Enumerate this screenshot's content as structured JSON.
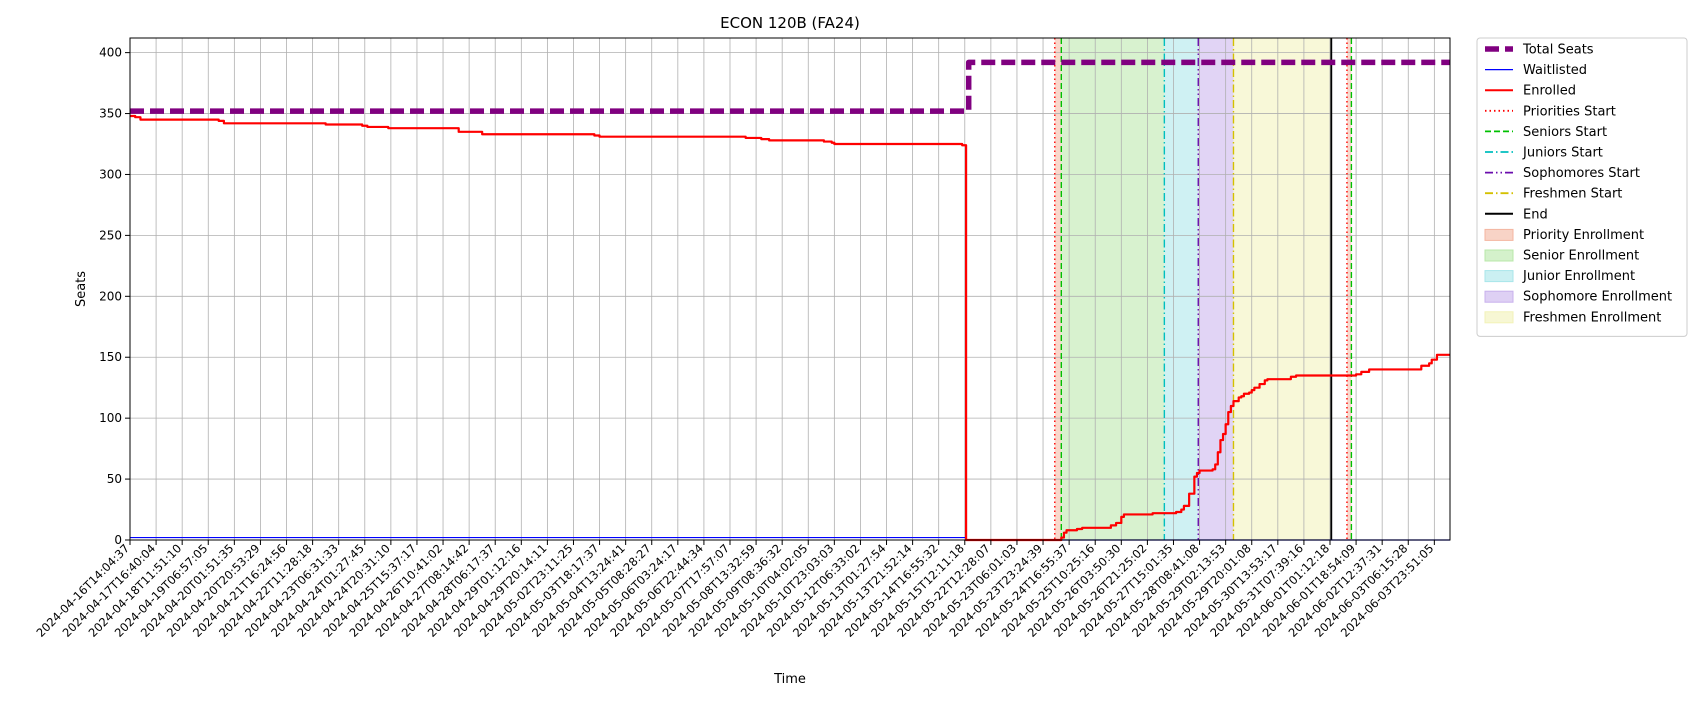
{
  "chart_data": {
    "type": "line",
    "title": "ECON 120B (FA24)",
    "xlabel": "Time",
    "ylabel": "Seats",
    "ylim": [
      0,
      412
    ],
    "y_ticks": [
      0,
      50,
      100,
      150,
      200,
      250,
      300,
      350,
      400
    ],
    "grid": true,
    "legend_position": "outside-right",
    "x_tick_labels": [
      "2024-04-16T14:04:37",
      "2024-04-17T16:40:04",
      "2024-04-18T11:51:10",
      "2024-04-19T06:57:05",
      "2024-04-20T01:51:35",
      "2024-04-20T20:53:29",
      "2024-04-21T16:24:56",
      "2024-04-22T11:28:18",
      "2024-04-23T06:31:33",
      "2024-04-24T01:27:45",
      "2024-04-24T20:31:10",
      "2024-04-25T15:37:17",
      "2024-04-26T10:41:02",
      "2024-04-27T08:14:42",
      "2024-04-28T06:17:37",
      "2024-04-29T01:12:16",
      "2024-04-29T20:14:11",
      "2024-05-02T23:11:25",
      "2024-05-03T18:17:37",
      "2024-05-04T13:24:41",
      "2024-05-05T08:28:27",
      "2024-05-06T03:24:17",
      "2024-05-06T22:44:34",
      "2024-05-07T17:57:07",
      "2024-05-08T13:32:59",
      "2024-05-09T08:36:32",
      "2024-05-10T04:02:05",
      "2024-05-10T23:03:03",
      "2024-05-12T06:33:02",
      "2024-05-13T01:27:54",
      "2024-05-13T21:52:14",
      "2024-05-14T16:55:32",
      "2024-05-15T12:11:18",
      "2024-05-22T12:28:07",
      "2024-05-23T06:01:03",
      "2024-05-23T23:24:39",
      "2024-05-24T16:55:37",
      "2024-05-25T10:25:16",
      "2024-05-26T03:50:30",
      "2024-05-26T21:25:02",
      "2024-05-27T15:01:35",
      "2024-05-28T08:41:08",
      "2024-05-29T02:13:53",
      "2024-05-29T20:01:08",
      "2024-05-30T13:53:17",
      "2024-05-31T07:39:16",
      "2024-06-01T01:12:18",
      "2024-06-01T18:54:09",
      "2024-06-02T12:37:31",
      "2024-06-03T06:15:28",
      "2024-06-03T23:51:05"
    ],
    "x_range": [
      0,
      50.6
    ],
    "series": [
      {
        "name": "Total Seats",
        "color": "#800080",
        "style": "dashed-thick",
        "points": [
          [
            0,
            352
          ],
          [
            32.0,
            352
          ],
          [
            32.15,
            392
          ],
          [
            50.6,
            392
          ]
        ]
      },
      {
        "name": "Waitlisted",
        "color": "#0000ff",
        "style": "solid-thin",
        "points": [
          [
            0,
            2
          ],
          [
            32.0,
            2
          ],
          [
            32.05,
            0
          ],
          [
            50.6,
            0
          ]
        ]
      },
      {
        "name": "Enrolled",
        "color": "#ff0000",
        "style": "solid",
        "points": [
          [
            0,
            348
          ],
          [
            0.2,
            347
          ],
          [
            0.4,
            345
          ],
          [
            2.5,
            345
          ],
          [
            3.2,
            345
          ],
          [
            3.4,
            344
          ],
          [
            3.6,
            342
          ],
          [
            6.5,
            342
          ],
          [
            7.2,
            342
          ],
          [
            7.5,
            341
          ],
          [
            8.8,
            341
          ],
          [
            8.9,
            340
          ],
          [
            9.1,
            339
          ],
          [
            9.8,
            339
          ],
          [
            9.9,
            338
          ],
          [
            12.5,
            338
          ],
          [
            12.6,
            335
          ],
          [
            13.4,
            335
          ],
          [
            13.5,
            333
          ],
          [
            17.4,
            333
          ],
          [
            17.8,
            332
          ],
          [
            18.0,
            331
          ],
          [
            23.5,
            331
          ],
          [
            23.6,
            330
          ],
          [
            24.0,
            330
          ],
          [
            24.2,
            329
          ],
          [
            24.5,
            328
          ],
          [
            26.5,
            328
          ],
          [
            26.6,
            327
          ],
          [
            26.9,
            326
          ],
          [
            27.0,
            325
          ],
          [
            31.8,
            325
          ],
          [
            31.9,
            324
          ],
          [
            32.0,
            324
          ],
          [
            32.05,
            0
          ],
          [
            35.5,
            0
          ],
          [
            35.7,
            2
          ],
          [
            35.8,
            6
          ],
          [
            35.9,
            8
          ],
          [
            36.3,
            9
          ],
          [
            36.5,
            10
          ],
          [
            37.2,
            10
          ],
          [
            37.6,
            12
          ],
          [
            37.8,
            14
          ],
          [
            38.0,
            19
          ],
          [
            38.1,
            21
          ],
          [
            39.0,
            21
          ],
          [
            39.2,
            22
          ],
          [
            40.0,
            22
          ],
          [
            40.1,
            23
          ],
          [
            40.3,
            25
          ],
          [
            40.4,
            28
          ],
          [
            40.6,
            38
          ],
          [
            40.8,
            52
          ],
          [
            40.9,
            55
          ],
          [
            41.0,
            57
          ],
          [
            41.3,
            57
          ],
          [
            41.5,
            58
          ],
          [
            41.6,
            62
          ],
          [
            41.7,
            72
          ],
          [
            41.8,
            82
          ],
          [
            41.9,
            87
          ],
          [
            42.0,
            95
          ],
          [
            42.1,
            105
          ],
          [
            42.2,
            110
          ],
          [
            42.3,
            114
          ],
          [
            42.5,
            117
          ],
          [
            42.6,
            118
          ],
          [
            42.7,
            120
          ],
          [
            42.9,
            121
          ],
          [
            43.0,
            123
          ],
          [
            43.1,
            125
          ],
          [
            43.3,
            128
          ],
          [
            43.5,
            131
          ],
          [
            43.6,
            132
          ],
          [
            44.2,
            132
          ],
          [
            44.5,
            134
          ],
          [
            44.7,
            135
          ],
          [
            46.8,
            135
          ],
          [
            46.9,
            135
          ],
          [
            47.0,
            136
          ],
          [
            47.2,
            138
          ],
          [
            47.5,
            140
          ],
          [
            49.4,
            140
          ],
          [
            49.5,
            143
          ],
          [
            49.8,
            145
          ],
          [
            49.9,
            148
          ],
          [
            50.1,
            152
          ],
          [
            50.6,
            152
          ]
        ]
      }
    ],
    "vertical_lines": [
      {
        "name": "Priorities Start",
        "x": 35.45,
        "color": "#ff0000",
        "style": "dotted"
      },
      {
        "name": "Seniors Start",
        "x": 35.7,
        "color": "#00c000",
        "style": "dashed"
      },
      {
        "name": "Juniors Start",
        "x": 39.65,
        "color": "#00bfbf",
        "style": "dashdot"
      },
      {
        "name": "Sophomores Start",
        "x": 40.95,
        "color": "#6a0dad",
        "style": "dashdotdot"
      },
      {
        "name": "Freshmen Start",
        "x": 42.3,
        "color": "#d4c000",
        "style": "dashdot"
      },
      {
        "name": "End",
        "x": 46.05,
        "color": "#000000",
        "style": "solid"
      },
      {
        "name": "Priorities Start",
        "x": 46.65,
        "color": "#ff0000",
        "style": "dotted"
      },
      {
        "name": "Seniors Start",
        "x": 46.82,
        "color": "#00c000",
        "style": "dashed"
      }
    ],
    "shaded_regions": [
      {
        "name": "Priority Enrollment",
        "from": 35.45,
        "to": 35.7,
        "color": "#f4b6a0"
      },
      {
        "name": "Senior Enrollment",
        "from": 35.7,
        "to": 39.65,
        "color": "#b8e8a8"
      },
      {
        "name": "Junior Enrollment",
        "from": 39.65,
        "to": 40.95,
        "color": "#a8e6ea"
      },
      {
        "name": "Sophomore Enrollment",
        "from": 40.95,
        "to": 42.3,
        "color": "#c8b0ec"
      },
      {
        "name": "Freshmen Enrollment",
        "from": 42.3,
        "to": 46.05,
        "color": "#f2f2b8"
      },
      {
        "name": "Priority Enrollment",
        "from": 46.65,
        "to": 46.82,
        "color": "#f4b6a0"
      }
    ],
    "legend": [
      {
        "label": "Total Seats",
        "kind": "line",
        "color": "#800080",
        "style": "dashed-thick"
      },
      {
        "label": "Waitlisted",
        "kind": "line",
        "color": "#0000ff",
        "style": "solid-thin"
      },
      {
        "label": "Enrolled",
        "kind": "line",
        "color": "#ff0000",
        "style": "solid"
      },
      {
        "label": "Priorities Start",
        "kind": "line",
        "color": "#ff0000",
        "style": "dotted"
      },
      {
        "label": "Seniors Start",
        "kind": "line",
        "color": "#00c000",
        "style": "dashed"
      },
      {
        "label": "Juniors Start",
        "kind": "line",
        "color": "#00bfbf",
        "style": "dashdot"
      },
      {
        "label": "Sophomores Start",
        "kind": "line",
        "color": "#6a0dad",
        "style": "dashdotdot"
      },
      {
        "label": "Freshmen Start",
        "kind": "line",
        "color": "#d4c000",
        "style": "dashdot"
      },
      {
        "label": "End",
        "kind": "line",
        "color": "#000000",
        "style": "solid"
      },
      {
        "label": "Priority Enrollment",
        "kind": "patch",
        "color": "#f4b6a0"
      },
      {
        "label": "Senior Enrollment",
        "kind": "patch",
        "color": "#b8e8a8"
      },
      {
        "label": "Junior Enrollment",
        "kind": "patch",
        "color": "#a8e6ea"
      },
      {
        "label": "Sophomore Enrollment",
        "kind": "patch",
        "color": "#c8b0ec"
      },
      {
        "label": "Freshmen Enrollment",
        "kind": "patch",
        "color": "#f2f2b8"
      }
    ]
  }
}
